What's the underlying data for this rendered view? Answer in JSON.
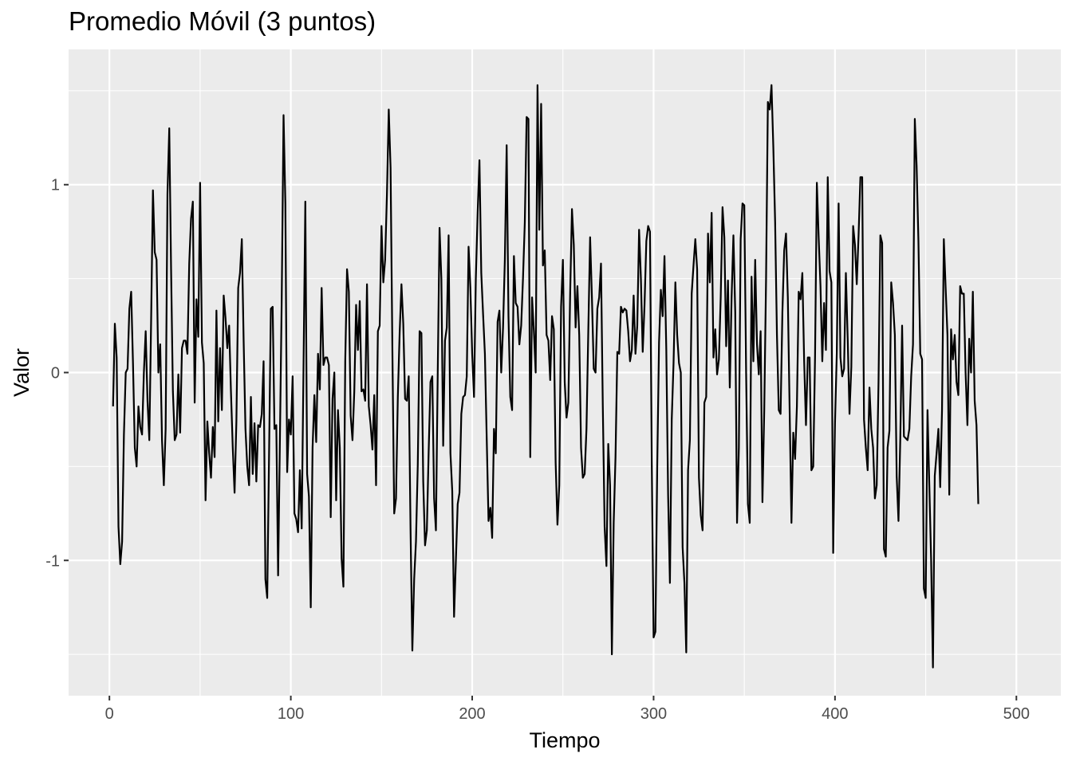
{
  "chart_data": {
    "type": "line",
    "title": "Promedio Móvil (3 puntos)",
    "xlabel": "Tiempo",
    "ylabel": "Valor",
    "xlim": [
      -22.5,
      524.5
    ],
    "ylim": [
      -1.72,
      1.72
    ],
    "x_ticks": [
      0,
      100,
      200,
      300,
      400,
      500
    ],
    "y_ticks": [
      -1,
      0,
      1
    ],
    "x_tick_labels": [
      "0",
      "100",
      "200",
      "300",
      "400",
      "500"
    ],
    "y_tick_labels": [
      "-1",
      "0",
      "1"
    ],
    "grid": true,
    "background": "#ebebeb",
    "grid_color": "#ffffff",
    "line_color": "#000000",
    "series": [
      {
        "x_start": 2,
        "x_step": 1,
        "values": [
          -0.18,
          0.26,
          0.08,
          -0.82,
          -1.02,
          -0.9,
          -0.33,
          0.0,
          0.02,
          0.34,
          0.43,
          0.05,
          -0.4,
          -0.5,
          -0.18,
          -0.29,
          -0.33,
          0.0,
          0.22,
          -0.15,
          -0.36,
          0.28,
          0.97,
          0.64,
          0.6,
          0.0,
          0.15,
          -0.36,
          -0.6,
          -0.3,
          0.95,
          1.3,
          0.55,
          -0.1,
          -0.36,
          -0.33,
          -0.01,
          -0.32,
          0.13,
          0.17,
          0.17,
          0.1,
          0.58,
          0.82,
          0.91,
          -0.16,
          0.39,
          0.19,
          1.01,
          0.16,
          0.05,
          -0.68,
          -0.26,
          -0.43,
          -0.56,
          -0.29,
          -0.45,
          0.33,
          -0.26,
          0.13,
          -0.2,
          0.41,
          0.29,
          0.13,
          0.25,
          -0.1,
          -0.4,
          -0.64,
          -0.26,
          0.45,
          0.53,
          0.71,
          0.17,
          -0.3,
          -0.5,
          -0.6,
          -0.13,
          -0.54,
          -0.27,
          -0.58,
          -0.28,
          -0.29,
          -0.22,
          0.06,
          -1.1,
          -1.2,
          -0.45,
          0.34,
          0.35,
          -0.3,
          -0.28,
          -1.08,
          -0.35,
          0.4,
          1.37,
          0.9,
          -0.53,
          -0.25,
          -0.33,
          -0.02,
          -0.75,
          -0.78,
          -0.85,
          -0.52,
          -0.83,
          0.02,
          0.91,
          -0.54,
          -0.66,
          -1.25,
          -0.4,
          -0.12,
          -0.37,
          0.1,
          -0.09,
          0.45,
          0.04,
          0.08,
          0.08,
          0.04,
          -0.77,
          -0.14,
          0.0,
          -0.68,
          -0.2,
          -0.4,
          -0.99,
          -1.14,
          0.06,
          0.55,
          0.43,
          -0.23,
          -0.36,
          -0.1,
          0.36,
          0.12,
          0.38,
          -0.1,
          -0.09,
          -0.15,
          0.47,
          -0.18,
          -0.28,
          -0.41,
          -0.12,
          -0.6,
          0.22,
          0.25,
          0.78,
          0.48,
          0.6,
          0.95,
          1.4,
          1.09,
          0.12,
          -0.75,
          -0.67,
          -0.13,
          0.21,
          0.47,
          0.26,
          -0.14,
          -0.15,
          -0.02,
          -0.83,
          -1.48,
          -1.1,
          -0.9,
          -0.49,
          0.22,
          0.21,
          -0.58,
          -0.92,
          -0.84,
          -0.42,
          -0.05,
          -0.02,
          -0.67,
          -0.84,
          0.0,
          0.77,
          0.5,
          -0.39,
          0.17,
          0.24,
          0.73,
          -0.43,
          -0.63,
          -1.3,
          -1.0,
          -0.7,
          -0.64,
          -0.22,
          -0.13,
          -0.12,
          -0.02,
          0.67,
          0.45,
          0.1,
          -0.13,
          0.5,
          0.85,
          1.13,
          0.53,
          0.31,
          0.1,
          -0.35,
          -0.79,
          -0.72,
          -0.88,
          -0.3,
          -0.43,
          0.27,
          0.33,
          0.0,
          0.24,
          0.6,
          1.21,
          0.3,
          -0.13,
          -0.2,
          0.62,
          0.37,
          0.35,
          0.15,
          0.25,
          0.5,
          0.8,
          1.36,
          1.35,
          -0.45,
          0.4,
          0.22,
          0.0,
          1.53,
          0.76,
          1.43,
          0.57,
          0.65,
          0.2,
          0.17,
          -0.04,
          0.3,
          0.23,
          -0.48,
          -0.81,
          -0.6,
          0.35,
          0.6,
          -0.05,
          -0.24,
          -0.16,
          0.42,
          0.87,
          0.68,
          0.24,
          0.46,
          0.2,
          -0.4,
          -0.56,
          -0.54,
          -0.3,
          0.22,
          0.72,
          0.4,
          0.02,
          0.0,
          0.34,
          0.4,
          0.58,
          -0.18,
          -0.82,
          -1.03,
          -0.38,
          -0.6,
          -1.5,
          -0.8,
          -0.45,
          0.11,
          0.1,
          0.35,
          0.32,
          0.34,
          0.33,
          0.22,
          0.06,
          0.12,
          0.41,
          0.1,
          0.25,
          0.76,
          0.5,
          0.11,
          0.36,
          0.7,
          0.78,
          0.75,
          -0.48,
          -1.41,
          -1.38,
          -0.5,
          0.16,
          0.44,
          0.3,
          0.62,
          0.12,
          -0.65,
          -1.12,
          -0.25,
          0.05,
          0.48,
          0.2,
          0.05,
          0.0,
          -0.93,
          -1.12,
          -1.49,
          -0.52,
          -0.36,
          0.42,
          0.57,
          0.71,
          0.55,
          -0.56,
          -0.76,
          -0.84,
          -0.16,
          -0.13,
          0.74,
          0.48,
          0.85,
          0.08,
          0.23,
          -0.01,
          0.07,
          0.4,
          0.88,
          0.72,
          0.14,
          0.49,
          -0.08,
          0.4,
          0.73,
          0.32,
          -0.8,
          -0.4,
          0.71,
          0.9,
          0.89,
          0.0,
          -0.7,
          -0.8,
          0.51,
          0.06,
          0.6,
          0.15,
          -0.01,
          0.22,
          -0.69,
          -0.2,
          0.5,
          1.44,
          1.4,
          1.53,
          1.2,
          0.8,
          0.2,
          -0.2,
          -0.22,
          0.32,
          0.65,
          0.74,
          0.4,
          -0.2,
          -0.8,
          -0.32,
          -0.46,
          -0.18,
          0.43,
          0.39,
          0.53,
          0.06,
          -0.28,
          0.08,
          0.08,
          -0.52,
          -0.5,
          0.08,
          1.01,
          0.72,
          0.46,
          0.06,
          0.37,
          0.12,
          1.04,
          0.54,
          0.48,
          -0.96,
          -0.27,
          0.11,
          0.9,
          0.08,
          -0.02,
          0.02,
          0.53,
          0.18,
          -0.22,
          0.03,
          0.78,
          0.68,
          0.47,
          0.73,
          1.04,
          1.04,
          -0.25,
          -0.4,
          -0.52,
          -0.08,
          -0.3,
          -0.4,
          -0.67,
          -0.6,
          -0.05,
          0.73,
          0.69,
          -0.94,
          -0.98,
          -0.4,
          -0.31,
          0.48,
          0.37,
          0.2,
          -0.55,
          -0.79,
          -0.35,
          0.25,
          -0.34,
          -0.35,
          -0.36,
          -0.3,
          -0.02,
          0.15,
          1.35,
          1.1,
          0.7,
          0.1,
          0.07,
          -1.15,
          -1.2,
          -0.2,
          -0.6,
          -1.0,
          -1.57,
          -0.55,
          -0.43,
          -0.3,
          -0.61,
          -0.2,
          0.71,
          0.45,
          0.2,
          -0.65,
          0.23,
          0.07,
          0.2,
          -0.05,
          -0.12,
          0.46,
          0.42,
          0.42,
          0.0,
          -0.28,
          0.18,
          0.0,
          0.43,
          -0.15,
          -0.28,
          -0.7
        ]
      }
    ]
  }
}
